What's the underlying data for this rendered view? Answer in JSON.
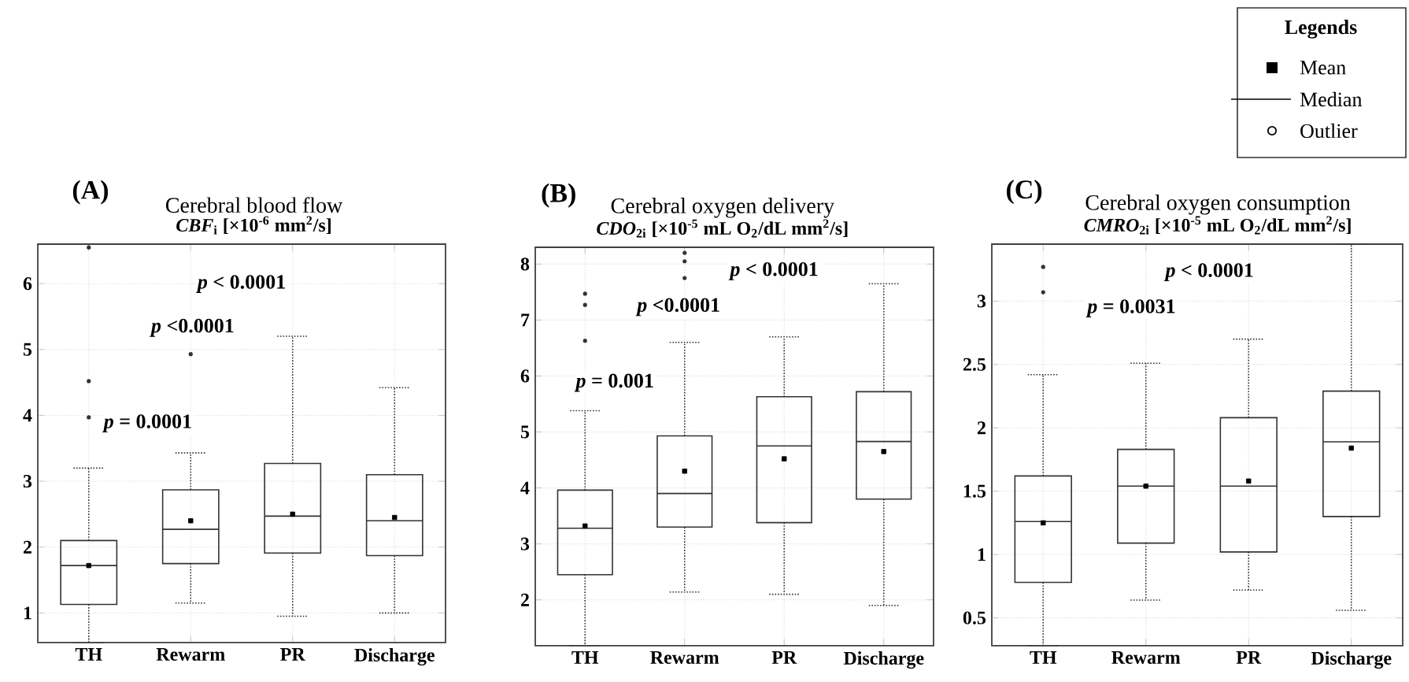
{
  "chart_data": [
    {
      "type": "box",
      "title": "Cerebral blood flow",
      "subtitle": "*CBF*$_{i}$ [×10$^{-6}$ mm$^{2}$/s]",
      "categories": [
        "TH",
        "Rewarm",
        "PR",
        "Discharge"
      ],
      "ylim": [
        0.55,
        6.6
      ],
      "yticks": [
        1,
        2,
        3,
        4,
        5,
        6
      ],
      "grid": true,
      "annotations": [
        "(A)",
        "*p* < 0.0001",
        "*p* <0.0001",
        "*p* = 0.0001"
      ],
      "boxes": [
        {
          "low": 0.55,
          "q1": 1.13,
          "median": 1.72,
          "q3": 2.1,
          "high": 3.2,
          "mean": 1.72,
          "outliers": [
            3.97,
            4.52,
            6.55
          ]
        },
        {
          "low": 1.15,
          "q1": 1.75,
          "median": 2.27,
          "q3": 2.87,
          "high": 3.43,
          "mean": 2.4,
          "outliers": [
            4.93
          ]
        },
        {
          "low": 0.95,
          "q1": 1.91,
          "median": 2.47,
          "q3": 3.27,
          "high": 5.2,
          "mean": 2.5
        },
        {
          "low": 1.0,
          "q1": 1.87,
          "median": 2.4,
          "q3": 3.1,
          "high": 4.42,
          "mean": 2.45
        }
      ]
    },
    {
      "type": "box",
      "title": "Cerebral oxygen delivery",
      "subtitle": "*CDO*$_{2i}$ [×10$^{-5}$ mL O$_{2}$/dL mm$^{2}$/s]",
      "categories": [
        "TH",
        "Rewarm",
        "PR",
        "Discharge"
      ],
      "ylim": [
        1.18,
        8.3
      ],
      "yticks": [
        2,
        3,
        4,
        5,
        6,
        7,
        8
      ],
      "grid": true,
      "annotations": [
        "(B)",
        "*p* < 0.0001",
        "*p* <0.0001",
        "*p* = 0.001"
      ],
      "boxes": [
        {
          "low": 1.18,
          "q1": 2.45,
          "median": 3.28,
          "q3": 3.96,
          "high": 5.38,
          "mean": 3.32,
          "outliers": [
            6.63,
            7.27,
            7.47
          ]
        },
        {
          "low": 2.14,
          "q1": 3.3,
          "median": 3.9,
          "q3": 4.93,
          "high": 6.6,
          "mean": 4.3,
          "outliers": [
            7.75,
            8.05,
            8.2
          ]
        },
        {
          "low": 2.1,
          "q1": 3.38,
          "median": 4.75,
          "q3": 5.63,
          "high": 6.7,
          "mean": 4.52
        },
        {
          "low": 1.9,
          "q1": 3.8,
          "median": 4.83,
          "q3": 5.72,
          "high": 7.65,
          "mean": 4.65
        }
      ]
    },
    {
      "type": "box",
      "title": "Cerebral oxygen consumption",
      "subtitle": "*CMRO*$_{2i}$ [×10$^{-5}$ mL O$_{2}$/dL mm$^{2}$/s]",
      "categories": [
        "TH",
        "Rewarm",
        "PR",
        "Discharge"
      ],
      "ylim": [
        0.28,
        3.45
      ],
      "yticks": [
        0.5,
        1,
        1.5,
        2,
        2.5,
        3
      ],
      "grid": true,
      "annotations": [
        "(C)",
        "*p* < 0.0001",
        "*p* = 0.0031"
      ],
      "boxes": [
        {
          "low": 0.28,
          "q1": 0.78,
          "median": 1.26,
          "q3": 1.62,
          "high": 2.42,
          "mean": 1.25,
          "outliers": [
            3.07,
            3.27
          ]
        },
        {
          "low": 0.64,
          "q1": 1.09,
          "median": 1.54,
          "q3": 1.83,
          "high": 2.51,
          "mean": 1.54
        },
        {
          "low": 0.72,
          "q1": 1.02,
          "median": 1.54,
          "q3": 2.08,
          "high": 2.7,
          "mean": 1.58
        },
        {
          "low": 0.56,
          "q1": 1.3,
          "median": 1.89,
          "q3": 2.29,
          "high": 3.45,
          "mean": 1.84
        }
      ]
    },
    {
      "type": "other",
      "title": "Legends",
      "annotations": [
        "Mean",
        "Median",
        "Outlier"
      ]
    }
  ]
}
